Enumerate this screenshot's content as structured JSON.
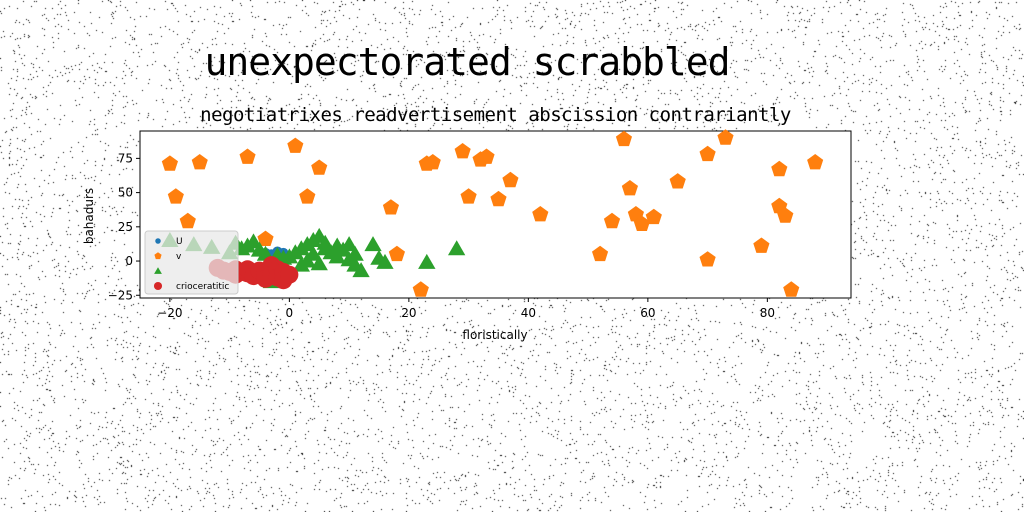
{
  "figure": {
    "suptitle": "unexpectorated scrabbled"
  },
  "chart_data": {
    "type": "scatter",
    "title": "negotiatrixes readvertisement abscission contrariantly",
    "xlabel": "floristically",
    "ylabel": "bahadurs",
    "xlim": [
      -25,
      94
    ],
    "ylim": [
      -27,
      95
    ],
    "xticks": [
      -20,
      0,
      20,
      40,
      60,
      80
    ],
    "yticks": [
      -25,
      0,
      25,
      50,
      75
    ],
    "grid": false,
    "legend": {
      "position": "lower-left"
    },
    "series": [
      {
        "name": "U",
        "color": "#1f77b4",
        "marker": "circle",
        "points": [
          [
            -4,
            6
          ],
          [
            -3,
            5
          ],
          [
            -2,
            7
          ],
          [
            -1,
            4
          ],
          [
            0,
            3
          ],
          [
            -3,
            2
          ],
          [
            -2,
            3
          ],
          [
            -1,
            6
          ]
        ]
      },
      {
        "name": "v",
        "color": "#ff7f0e",
        "marker": "pentagon",
        "points": [
          [
            -20,
            71
          ],
          [
            -19,
            47
          ],
          [
            -17,
            29
          ],
          [
            -15,
            72
          ],
          [
            -7,
            76
          ],
          [
            -4,
            16
          ],
          [
            1,
            84
          ],
          [
            3,
            47
          ],
          [
            5,
            68
          ],
          [
            17,
            39
          ],
          [
            18,
            5
          ],
          [
            22,
            -21
          ],
          [
            23,
            71
          ],
          [
            24,
            72
          ],
          [
            29,
            80
          ],
          [
            30,
            47
          ],
          [
            32,
            74
          ],
          [
            33,
            76
          ],
          [
            35,
            45
          ],
          [
            37,
            59
          ],
          [
            42,
            34
          ],
          [
            52,
            5
          ],
          [
            54,
            29
          ],
          [
            56,
            89
          ],
          [
            57,
            53
          ],
          [
            58,
            34
          ],
          [
            59,
            27
          ],
          [
            61,
            32
          ],
          [
            65,
            58
          ],
          [
            70,
            1
          ],
          [
            70,
            78
          ],
          [
            73,
            90
          ],
          [
            79,
            11
          ],
          [
            82,
            67
          ],
          [
            82,
            40
          ],
          [
            83,
            33
          ],
          [
            84,
            -21
          ],
          [
            88,
            72
          ]
        ]
      },
      {
        "name": "",
        "color": "#2ca02c",
        "marker": "triangle",
        "points": [
          [
            -20,
            15
          ],
          [
            -16,
            12
          ],
          [
            -13,
            10
          ],
          [
            -10,
            6
          ],
          [
            -9,
            13
          ],
          [
            -8,
            9
          ],
          [
            -7,
            11
          ],
          [
            -6,
            14
          ],
          [
            -5,
            8
          ],
          [
            -4,
            5
          ],
          [
            -3,
            -15
          ],
          [
            -2,
            4
          ],
          [
            -1,
            2
          ],
          [
            0,
            3
          ],
          [
            1,
            6
          ],
          [
            2,
            -3
          ],
          [
            2,
            9
          ],
          [
            3,
            12
          ],
          [
            3,
            0
          ],
          [
            4,
            15
          ],
          [
            4,
            5
          ],
          [
            5,
            18
          ],
          [
            5,
            -2
          ],
          [
            6,
            13
          ],
          [
            6,
            9
          ],
          [
            7,
            6
          ],
          [
            8,
            11
          ],
          [
            8,
            3
          ],
          [
            9,
            8
          ],
          [
            10,
            12
          ],
          [
            10,
            1
          ],
          [
            11,
            5
          ],
          [
            11,
            -3
          ],
          [
            12,
            -7
          ],
          [
            14,
            12
          ],
          [
            15,
            2
          ],
          [
            16,
            -1
          ],
          [
            23,
            -1
          ],
          [
            28,
            9
          ]
        ]
      },
      {
        "name": "crioceratitic",
        "color": "#d62728",
        "marker": "circle-large",
        "points": [
          [
            -11,
            -7
          ],
          [
            -10,
            -8
          ],
          [
            -9,
            -6
          ],
          [
            -9,
            -10
          ],
          [
            -8,
            -8
          ],
          [
            -7,
            -9
          ],
          [
            -7,
            -6
          ],
          [
            -6,
            -11
          ],
          [
            -5,
            -7
          ],
          [
            -4,
            -9
          ],
          [
            -4,
            -13
          ],
          [
            -3,
            -3
          ],
          [
            -3,
            -10
          ],
          [
            -2,
            -6
          ],
          [
            -2,
            -12
          ],
          [
            -1,
            -8
          ],
          [
            -1,
            -14
          ],
          [
            0,
            -10
          ],
          [
            -12,
            -5
          ]
        ]
      }
    ]
  }
}
